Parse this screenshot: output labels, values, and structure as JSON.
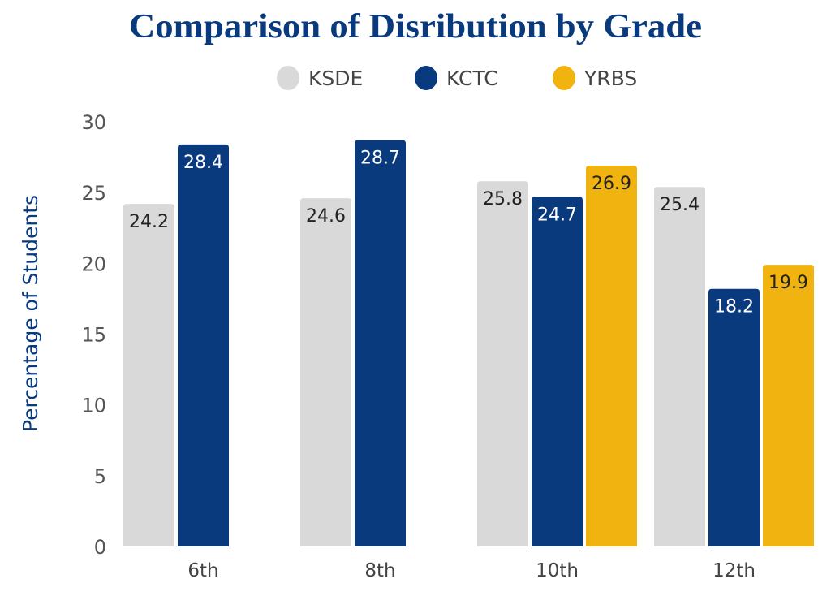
{
  "chart_data": {
    "type": "bar",
    "title": "Comparison of Disribution by Grade",
    "xlabel": "",
    "ylabel": "Percentage of Students",
    "ylim": [
      0,
      30
    ],
    "yticks": [
      0,
      5,
      10,
      15,
      20,
      25,
      30
    ],
    "grid": false,
    "legend_position": "top",
    "categories": [
      "6th",
      "8th",
      "10th",
      "12th"
    ],
    "series": [
      {
        "name": "KSDE",
        "color": "#d9d9d9",
        "label_color": "#222222",
        "values": [
          24.2,
          24.6,
          25.8,
          25.4
        ]
      },
      {
        "name": "KCTC",
        "color": "#0a3a7e",
        "label_color": "#ffffff",
        "values": [
          28.4,
          28.7,
          24.7,
          18.2
        ]
      },
      {
        "name": "YRBS",
        "color": "#f0b310",
        "label_color": "#222222",
        "values": [
          null,
          null,
          26.9,
          19.9
        ]
      }
    ]
  }
}
